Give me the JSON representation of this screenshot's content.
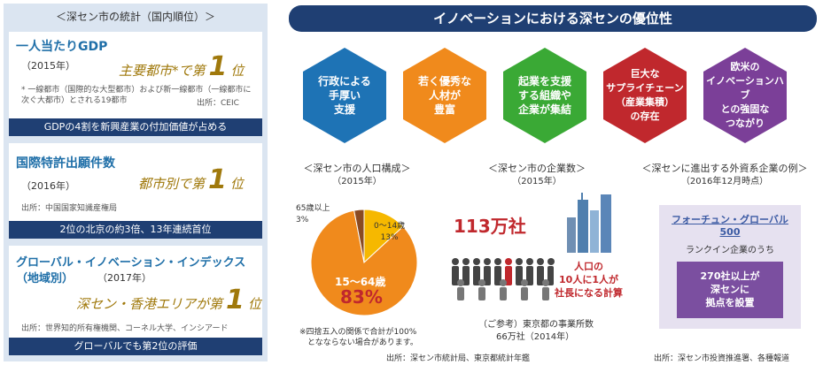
{
  "left": {
    "title": "＜深セン市の統計（国内順位）＞",
    "cards": [
      {
        "heading": "一人当たりGDP",
        "year": "（2015年）",
        "rank_prefix": "主要都市*で第",
        "rank_number": "1",
        "rank_suffix": "位",
        "note": "* 一線都市（国際的な大型都市）および新一線都市（一線都市に次ぐ大都市）とされる19都市",
        "source": "出所：CEIC",
        "bar": "GDPの4割を新興産業の付加価値が占める"
      },
      {
        "heading": "国際特許出願件数",
        "year": "（2016年）",
        "rank_prefix": "都市別で第",
        "rank_number": "1",
        "rank_suffix": "位",
        "source": "出所：中国国家知識産権局",
        "bar": "2位の北京の約3倍、13年連続首位"
      },
      {
        "heading": "グローバル・イノベーション・インデックス",
        "heading2": "（地域別）",
        "year": "（2017年）",
        "rank_prefix": "深セン・香港エリアが第",
        "rank_number": "1",
        "rank_suffix": "位",
        "source": "出所：世界知的所有権機関、コーネル大学、インシアード",
        "bar": "グローバルでも第2位の評価"
      }
    ]
  },
  "right": {
    "title": "イノベーションにおける深センの優位性",
    "hexes": [
      {
        "label": "行政による\n手厚い\n支援",
        "color": "#1e73b5"
      },
      {
        "label": "若く優秀な\n人材が\n豊富",
        "color": "#f08a1c"
      },
      {
        "label": "起業を支援\nする組織や\n企業が集結",
        "color": "#3aa935"
      },
      {
        "label": "巨大な\nサプライチェーン\n（産業集積）\nの存在",
        "color": "#c0282d"
      },
      {
        "label": "欧米の\nイノベーションハブ\nとの強固な\nつながり",
        "color": "#7b3f98"
      }
    ],
    "population": {
      "title": "＜深セン市の人口構成＞",
      "subtitle": "（2015年）",
      "label_old": "65歳以上\n3%",
      "label_young": "0～14歳\n13%",
      "label_work": "15～64歳",
      "label_work_pct": "83%",
      "note": "※四捨五入の関係で合計が100%\n　となならない場合があります。"
    },
    "companies": {
      "title": "＜深セン市の企業数＞",
      "subtitle": "（2015年）",
      "count": "113万社",
      "bubble": "人口の\n10人に1人が\n社長になる計算",
      "ref1": "（ご参考）東京都の事業所数",
      "ref2": "66万社（2014年）",
      "source": "出所：深セン市統計局、東京都統計年鑑"
    },
    "foreign": {
      "title": "＜深センに進出する外資系企業の例＞",
      "subtitle": "（2016年12月時点）",
      "f1": "フォーチュン・グローバル",
      "f2": "500",
      "f3": "ランクイン企業のうち",
      "box": "270社以上が\n深センに\n拠点を設置",
      "source": "出所：深セン市投資推進署、各種報道"
    }
  },
  "chart_data": {
    "type": "pie",
    "title": "＜深セン市の人口構成＞",
    "categories": [
      "0～14歳",
      "15～64歳",
      "65歳以上"
    ],
    "values": [
      13,
      83,
      3
    ],
    "colors": [
      "#f6b800",
      "#f08a1c",
      "#8a4a22"
    ]
  }
}
